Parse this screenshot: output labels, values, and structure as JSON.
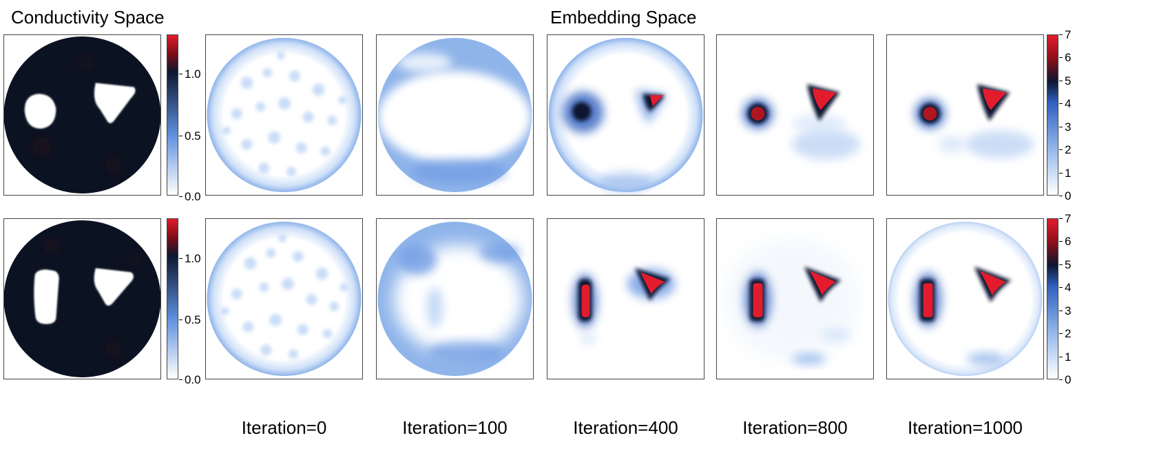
{
  "titles": {
    "conductivity": "Conductivity Space",
    "embedding": "Embedding Space"
  },
  "iteration_labels": [
    "Iteration=0",
    "Iteration=100",
    "Iteration=400",
    "Iteration=800",
    "Iteration=1000"
  ],
  "colorbars": {
    "conductivity_ticks": [
      "1.0",
      "0.5",
      "0.0"
    ],
    "conductivity_levels": [
      1.0,
      0.5,
      0.0
    ],
    "conductivity_max": 1.3,
    "embedding_ticks": [
      "7",
      "6",
      "5",
      "4",
      "3",
      "2",
      "1",
      "0"
    ],
    "embedding_levels": [
      7,
      6,
      5,
      4,
      3,
      2,
      1,
      0
    ],
    "embedding_max": 7
  },
  "colors": {
    "background": "#ffffff",
    "low": "#ffffff",
    "light_blue": "#a9c8f3",
    "mid_blue": "#5d8ede",
    "deep_navy": "#0c1630",
    "dark_red": "#8b0f18",
    "bright_red": "#e21c2c"
  }
}
